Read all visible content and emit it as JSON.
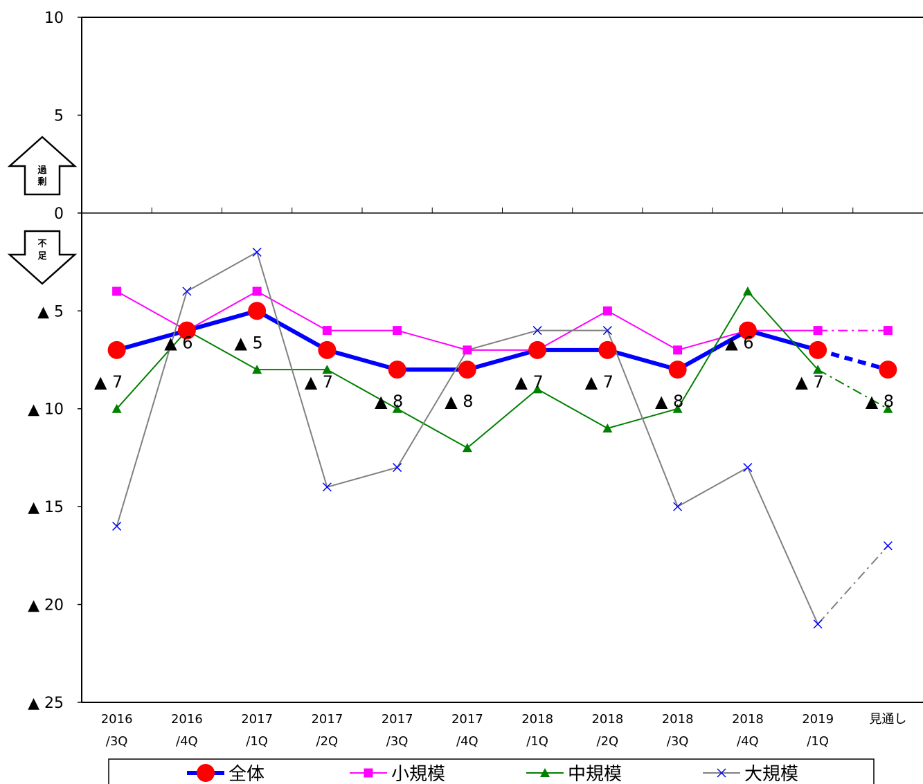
{
  "chart_data": {
    "type": "line",
    "categories": [
      [
        "2016",
        "/3Q"
      ],
      [
        "2016",
        "/4Q"
      ],
      [
        "2017",
        "/1Q"
      ],
      [
        "2017",
        "/2Q"
      ],
      [
        "2017",
        "/3Q"
      ],
      [
        "2017",
        "/4Q"
      ],
      [
        "2018",
        "/1Q"
      ],
      [
        "2018",
        "/2Q"
      ],
      [
        "2018",
        "/3Q"
      ],
      [
        "2018",
        "/4Q"
      ],
      [
        "2019",
        "/1Q"
      ],
      [
        "見通し",
        ""
      ]
    ],
    "ylim": [
      -25,
      10
    ],
    "y_ticks": [
      {
        "value": 10,
        "label": "10"
      },
      {
        "value": 5,
        "label": "5"
      },
      {
        "value": 0,
        "label": "0"
      },
      {
        "value": -5,
        "label": "▲ 5"
      },
      {
        "value": -10,
        "label": "▲ 10"
      },
      {
        "value": -15,
        "label": "▲ 15"
      },
      {
        "value": -20,
        "label": "▲ 20"
      },
      {
        "value": -25,
        "label": "▲ 25"
      }
    ],
    "arrows": {
      "up": [
        "過",
        "剰"
      ],
      "down": [
        "不",
        "足"
      ]
    },
    "series": [
      {
        "name": "全体",
        "color": "#0000FF",
        "marker": "circle",
        "marker_color": "#FF0000",
        "values": [
          -7,
          -6,
          -5,
          -7,
          -8,
          -8,
          -7,
          -7,
          -8,
          -6,
          -7,
          -8
        ]
      },
      {
        "name": "小規模",
        "color": "#FF00FF",
        "marker": "square",
        "marker_color": "#FF00FF",
        "values": [
          -4,
          -6,
          -4,
          -6,
          -6,
          -7,
          -7,
          -5,
          -7,
          -6,
          -6,
          -6
        ]
      },
      {
        "name": "中規模",
        "color": "#008000",
        "marker": "triangle",
        "marker_color": "#008000",
        "values": [
          -10,
          -6,
          -8,
          -8,
          -10,
          -12,
          -9,
          -11,
          -10,
          -4,
          -8,
          -10
        ]
      },
      {
        "name": "大規模",
        "color": "#808080",
        "marker": "x",
        "marker_color": "#0000FF",
        "values": [
          -16,
          -4,
          -2,
          -14,
          -13,
          -7,
          -6,
          -6,
          -15,
          -13,
          -21,
          -17
        ]
      }
    ],
    "data_labels": [
      "▲ 7",
      "▲ 6",
      "▲ 5",
      "▲ 7",
      "▲ 8",
      "▲ 8",
      "▲ 7",
      "▲ 7",
      "▲ 8",
      "▲ 6",
      "▲ 7",
      "▲ 8"
    ],
    "legend": {
      "position": "bottom",
      "entries": [
        "全体",
        "小規模",
        "中規模",
        "大規模"
      ]
    },
    "grid": false
  }
}
